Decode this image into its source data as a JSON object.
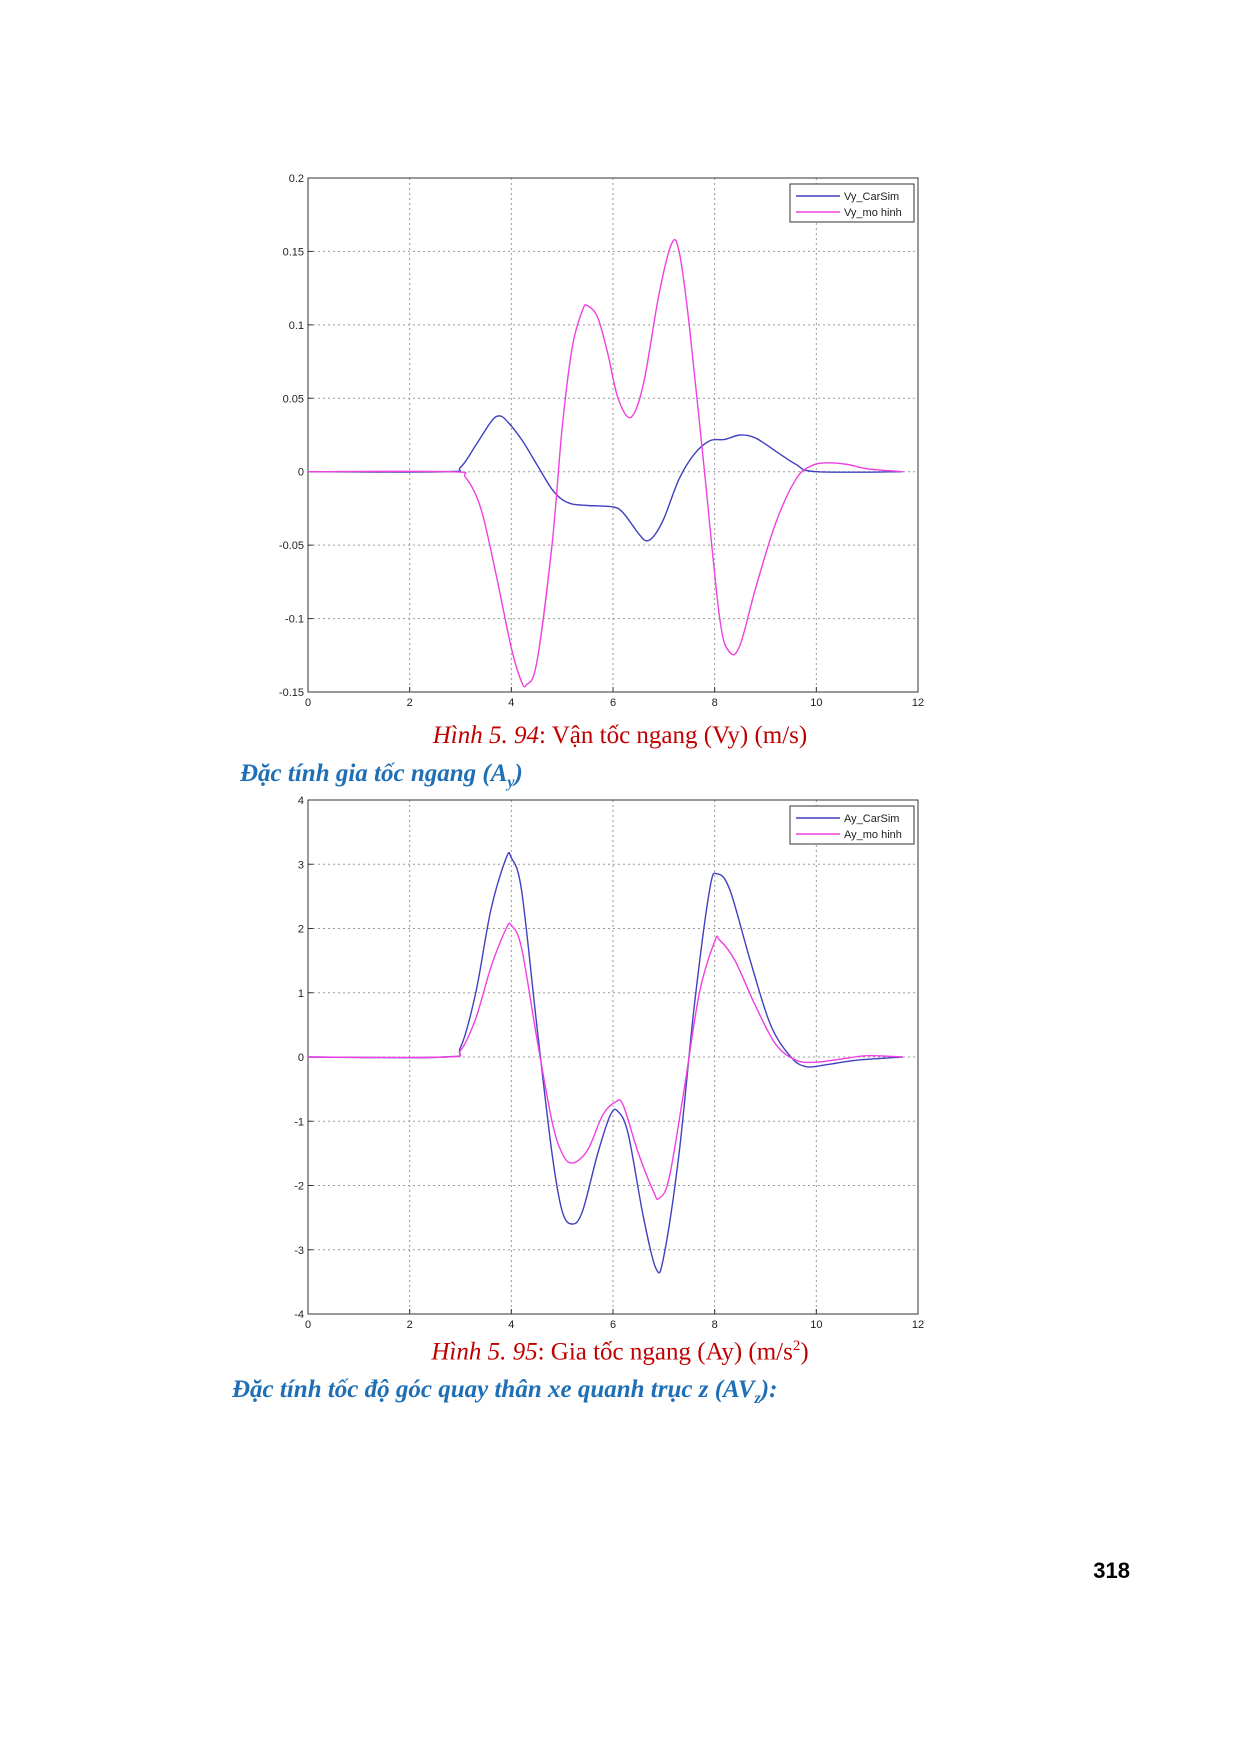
{
  "figure1": {
    "caption_prefix": "Hình 5. 94",
    "caption_text": ": Vận tốc ngang (Vy) (m/s)",
    "chart_data": {
      "type": "line",
      "xlim": [
        0,
        12
      ],
      "ylim": [
        -0.15,
        0.2
      ],
      "xticks": [
        0,
        2,
        4,
        6,
        8,
        10,
        12
      ],
      "yticks": [
        -0.15,
        -0.1,
        -0.05,
        0,
        0.05,
        0.1,
        0.15,
        0.2
      ],
      "xtick_labels": [
        "0",
        "2",
        "4",
        "6",
        "8",
        "10",
        "12"
      ],
      "ytick_labels": [
        "-0.15",
        "-0.1",
        "-0.05",
        "0",
        "0.05",
        "0.1",
        "0.15",
        "0.2"
      ],
      "grid": true,
      "legend_position": "top-right",
      "series": [
        {
          "name": "Vy_CarSim",
          "color": "#4040c0",
          "points": [
            [
              0,
              0
            ],
            [
              2.7,
              0
            ],
            [
              3.0,
              0.003
            ],
            [
              3.3,
              0.018
            ],
            [
              3.6,
              0.034
            ],
            [
              3.75,
              0.038
            ],
            [
              3.9,
              0.035
            ],
            [
              4.2,
              0.022
            ],
            [
              4.5,
              0.005
            ],
            [
              4.8,
              -0.012
            ],
            [
              5.0,
              -0.019
            ],
            [
              5.2,
              -0.022
            ],
            [
              5.5,
              -0.023
            ],
            [
              6.0,
              -0.024
            ],
            [
              6.2,
              -0.028
            ],
            [
              6.5,
              -0.042
            ],
            [
              6.65,
              -0.047
            ],
            [
              6.8,
              -0.044
            ],
            [
              7.0,
              -0.032
            ],
            [
              7.3,
              -0.005
            ],
            [
              7.6,
              0.012
            ],
            [
              7.9,
              0.021
            ],
            [
              8.2,
              0.022
            ],
            [
              8.5,
              0.025
            ],
            [
              8.8,
              0.023
            ],
            [
              9.2,
              0.014
            ],
            [
              9.6,
              0.005
            ],
            [
              10.0,
              0.0
            ],
            [
              11.7,
              0.0
            ]
          ]
        },
        {
          "name": "Vy_mo hinh",
          "color": "#f040e0",
          "points": [
            [
              0,
              0
            ],
            [
              2.8,
              0
            ],
            [
              3.1,
              -0.004
            ],
            [
              3.4,
              -0.025
            ],
            [
              3.7,
              -0.07
            ],
            [
              4.0,
              -0.12
            ],
            [
              4.2,
              -0.143
            ],
            [
              4.3,
              -0.145
            ],
            [
              4.5,
              -0.13
            ],
            [
              4.8,
              -0.05
            ],
            [
              5.0,
              0.03
            ],
            [
              5.2,
              0.085
            ],
            [
              5.4,
              0.11
            ],
            [
              5.5,
              0.113
            ],
            [
              5.7,
              0.105
            ],
            [
              5.9,
              0.08
            ],
            [
              6.1,
              0.05
            ],
            [
              6.35,
              0.037
            ],
            [
              6.6,
              0.06
            ],
            [
              6.9,
              0.12
            ],
            [
              7.15,
              0.155
            ],
            [
              7.3,
              0.15
            ],
            [
              7.5,
              0.1
            ],
            [
              7.8,
              0.0
            ],
            [
              8.1,
              -0.1
            ],
            [
              8.3,
              -0.123
            ],
            [
              8.5,
              -0.118
            ],
            [
              8.8,
              -0.08
            ],
            [
              9.2,
              -0.035
            ],
            [
              9.6,
              -0.005
            ],
            [
              9.9,
              0.004
            ],
            [
              10.2,
              0.006
            ],
            [
              10.6,
              0.005
            ],
            [
              11.0,
              0.002
            ],
            [
              11.7,
              0.0
            ]
          ]
        }
      ]
    }
  },
  "heading1": {
    "text": "Đặc tính gia tốc ngang (A",
    "subscript": "y",
    "suffix": ")"
  },
  "figure2": {
    "caption_prefix": "Hình 5. 95",
    "caption_text": ": Gia tốc ngang (Ay) (m/s",
    "caption_sup": "2",
    "caption_end": ")",
    "chart_data": {
      "type": "line",
      "xlim": [
        0,
        12
      ],
      "ylim": [
        -4,
        4
      ],
      "xticks": [
        0,
        2,
        4,
        6,
        8,
        10,
        12
      ],
      "yticks": [
        -4,
        -3,
        -2,
        -1,
        0,
        1,
        2,
        3,
        4
      ],
      "xtick_labels": [
        "0",
        "2",
        "4",
        "6",
        "8",
        "10",
        "12"
      ],
      "ytick_labels": [
        "-4",
        "-3",
        "-2",
        "-1",
        "0",
        "1",
        "2",
        "3",
        "4"
      ],
      "grid": true,
      "legend_position": "top-right",
      "series": [
        {
          "name": "Ay_CarSim",
          "color": "#4040c0",
          "points": [
            [
              0,
              0
            ],
            [
              2.7,
              0
            ],
            [
              3.0,
              0.15
            ],
            [
              3.3,
              1.0
            ],
            [
              3.6,
              2.3
            ],
            [
              3.9,
              3.1
            ],
            [
              4.0,
              3.1
            ],
            [
              4.2,
              2.6
            ],
            [
              4.5,
              0.5
            ],
            [
              4.8,
              -1.5
            ],
            [
              5.0,
              -2.4
            ],
            [
              5.2,
              -2.6
            ],
            [
              5.4,
              -2.4
            ],
            [
              5.7,
              -1.5
            ],
            [
              5.95,
              -0.9
            ],
            [
              6.1,
              -0.85
            ],
            [
              6.3,
              -1.2
            ],
            [
              6.6,
              -2.5
            ],
            [
              6.85,
              -3.3
            ],
            [
              7.0,
              -3.1
            ],
            [
              7.3,
              -1.5
            ],
            [
              7.6,
              0.8
            ],
            [
              7.9,
              2.6
            ],
            [
              8.05,
              2.85
            ],
            [
              8.3,
              2.6
            ],
            [
              8.7,
              1.5
            ],
            [
              9.1,
              0.5
            ],
            [
              9.5,
              0.0
            ],
            [
              9.8,
              -0.15
            ],
            [
              10.2,
              -0.12
            ],
            [
              10.8,
              -0.05
            ],
            [
              11.7,
              0.0
            ]
          ]
        },
        {
          "name": "Ay_mo hinh",
          "color": "#f040e0",
          "points": [
            [
              0,
              0
            ],
            [
              2.7,
              0
            ],
            [
              3.0,
              0.1
            ],
            [
              3.3,
              0.6
            ],
            [
              3.6,
              1.4
            ],
            [
              3.9,
              2.0
            ],
            [
              4.0,
              2.05
            ],
            [
              4.2,
              1.7
            ],
            [
              4.5,
              0.3
            ],
            [
              4.8,
              -1.0
            ],
            [
              5.0,
              -1.5
            ],
            [
              5.2,
              -1.65
            ],
            [
              5.5,
              -1.45
            ],
            [
              5.8,
              -0.9
            ],
            [
              6.05,
              -0.7
            ],
            [
              6.2,
              -0.75
            ],
            [
              6.5,
              -1.5
            ],
            [
              6.8,
              -2.1
            ],
            [
              6.9,
              -2.2
            ],
            [
              7.1,
              -1.9
            ],
            [
              7.4,
              -0.5
            ],
            [
              7.7,
              1.0
            ],
            [
              8.0,
              1.8
            ],
            [
              8.1,
              1.82
            ],
            [
              8.4,
              1.5
            ],
            [
              8.8,
              0.8
            ],
            [
              9.2,
              0.2
            ],
            [
              9.6,
              -0.05
            ],
            [
              10.0,
              -0.08
            ],
            [
              10.5,
              -0.03
            ],
            [
              11.0,
              0.02
            ],
            [
              11.7,
              0.0
            ]
          ]
        }
      ]
    }
  },
  "heading2": {
    "text": "Đặc tính tốc độ góc quay thân xe quanh trục z (AV",
    "subscript": "z",
    "suffix": "):"
  },
  "page_number": "318"
}
